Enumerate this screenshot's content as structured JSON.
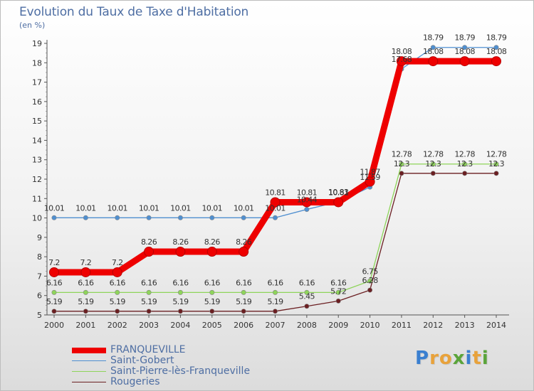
{
  "title": "Evolution du Taux de Taxe d'Habitation",
  "unit_label": "(en %)",
  "logo": {
    "letters": [
      "P",
      "r",
      "o",
      "x",
      "i",
      "t",
      "i"
    ],
    "colors": [
      "#3a7fd0",
      "#e8a23b",
      "#e8a23b",
      "#5aa43a",
      "#3a7fd0",
      "#e8a23b",
      "#5aa43a"
    ]
  },
  "chart_data": {
    "type": "line",
    "title": "Evolution du Taux de Taxe d'Habitation",
    "ylabel": "(en %)",
    "xlabel": "",
    "x": [
      "2000",
      "2001",
      "2002",
      "2003",
      "2004",
      "2005",
      "2006",
      "2007",
      "2008",
      "2009",
      "2010",
      "2011",
      "2012",
      "2013",
      "2014"
    ],
    "ylim": [
      5,
      19
    ],
    "yticks": [
      5,
      6,
      7,
      8,
      9,
      10,
      11,
      12,
      13,
      14,
      15,
      16,
      17,
      18,
      19
    ],
    "grid": false,
    "legend_position": "bottom-left",
    "series": [
      {
        "name": "FRANQUEVILLE",
        "color": "#ee0000",
        "values": [
          7.2,
          7.2,
          7.2,
          8.26,
          8.26,
          8.26,
          8.26,
          10.81,
          10.81,
          10.81,
          11.87,
          18.08,
          18.08,
          18.08,
          18.08
        ],
        "labels": [
          "7.2",
          "7.2",
          "7.2",
          "8.26",
          "8.26",
          "8.26",
          "8.26",
          "10.81",
          "10.81",
          "10.81",
          "11.87",
          "18.08",
          "18.08",
          "18.08",
          "18.08"
        ]
      },
      {
        "name": "Saint-Gobert",
        "color": "#4f8fd0",
        "values": [
          10.01,
          10.01,
          10.01,
          10.01,
          10.01,
          10.01,
          10.01,
          10.01,
          10.44,
          10.83,
          11.59,
          17.68,
          18.79,
          18.79,
          18.79
        ],
        "labels": [
          "10.01",
          "10.01",
          "10.01",
          "10.01",
          "10.01",
          "10.01",
          "10.01",
          "10.01",
          "10.44",
          "10.83",
          "11.59",
          "17.68",
          "18.79",
          "18.79",
          "18.79"
        ]
      },
      {
        "name": "Saint-Pierre-lès-Franqueville",
        "color": "#8ed45a",
        "values": [
          6.16,
          6.16,
          6.16,
          6.16,
          6.16,
          6.16,
          6.16,
          6.16,
          6.16,
          6.16,
          6.75,
          12.78,
          12.78,
          12.78,
          12.78
        ],
        "labels": [
          "6.16",
          "6.16",
          "6.16",
          "6.16",
          "6.16",
          "6.16",
          "6.16",
          "6.16",
          "6.16",
          "6.16",
          "6.75",
          "12.78",
          "12.78",
          "12.78",
          "12.78"
        ]
      },
      {
        "name": "Rougeries",
        "color": "#6b1f22",
        "values": [
          5.19,
          5.19,
          5.19,
          5.19,
          5.19,
          5.19,
          5.19,
          5.19,
          5.45,
          5.72,
          6.28,
          12.3,
          12.3,
          12.3,
          12.3
        ],
        "labels": [
          "5.19",
          "5.19",
          "5.19",
          "5.19",
          "5.19",
          "5.19",
          "5.19",
          "5.19",
          "5.45",
          "5.72",
          "6.28",
          "12.3",
          "12.3",
          "12.3",
          "12.3"
        ]
      }
    ]
  }
}
